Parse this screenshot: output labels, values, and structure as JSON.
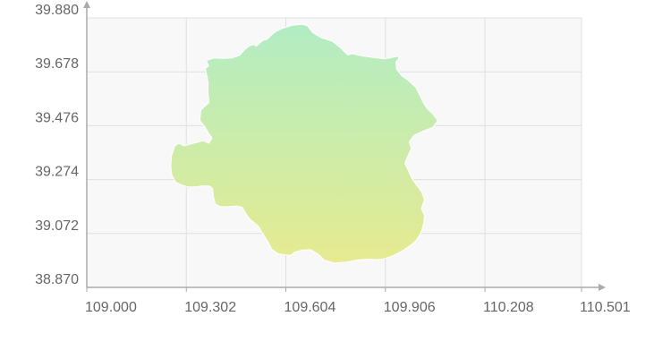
{
  "chart_data": {
    "type": "map",
    "title": "",
    "xlabel": "",
    "ylabel": "",
    "x_ticks": [
      "109.000",
      "109.302",
      "109.604",
      "109.906",
      "110.208",
      "110.501"
    ],
    "y_ticks": [
      "39.880",
      "39.678",
      "39.476",
      "39.274",
      "39.072",
      "38.870"
    ],
    "xlim": [
      109.0,
      110.501
    ],
    "ylim": [
      38.87,
      39.88
    ],
    "grid": true,
    "region_fill_colors": [
      "#b2ecc4",
      "#e6eb90"
    ],
    "region_outline": [
      [
        109.59,
        39.839
      ],
      [
        109.623,
        39.852
      ],
      [
        109.654,
        39.856
      ],
      [
        109.67,
        39.85
      ],
      [
        109.685,
        39.825
      ],
      [
        109.711,
        39.806
      ],
      [
        109.745,
        39.792
      ],
      [
        109.77,
        39.768
      ],
      [
        109.784,
        39.75
      ],
      [
        109.793,
        39.741
      ],
      [
        109.805,
        39.746
      ],
      [
        109.831,
        39.738
      ],
      [
        109.855,
        39.734
      ],
      [
        109.881,
        39.73
      ],
      [
        109.901,
        39.727
      ],
      [
        109.92,
        39.73
      ],
      [
        109.944,
        39.737
      ],
      [
        109.947,
        39.727
      ],
      [
        109.938,
        39.715
      ],
      [
        109.94,
        39.688
      ],
      [
        109.955,
        39.664
      ],
      [
        109.977,
        39.644
      ],
      [
        109.998,
        39.62
      ],
      [
        110.01,
        39.59
      ],
      [
        110.02,
        39.565
      ],
      [
        110.032,
        39.541
      ],
      [
        110.05,
        39.52
      ],
      [
        110.065,
        39.495
      ],
      [
        110.05,
        39.47
      ],
      [
        110.02,
        39.456
      ],
      [
        109.993,
        39.44
      ],
      [
        109.978,
        39.415
      ],
      [
        109.985,
        39.39
      ],
      [
        109.974,
        39.362
      ],
      [
        109.965,
        39.335
      ],
      [
        109.975,
        39.31
      ],
      [
        109.985,
        39.281
      ],
      [
        110.0,
        39.254
      ],
      [
        110.016,
        39.228
      ],
      [
        110.025,
        39.198
      ],
      [
        110.015,
        39.165
      ],
      [
        110.025,
        39.14
      ],
      [
        110.022,
        39.109
      ],
      [
        110.014,
        39.075
      ],
      [
        110.0,
        39.048
      ],
      [
        109.985,
        39.03
      ],
      [
        109.96,
        39.009
      ],
      [
        109.932,
        38.99
      ],
      [
        109.902,
        38.977
      ],
      [
        109.878,
        38.974
      ],
      [
        109.858,
        38.976
      ],
      [
        109.823,
        38.973
      ],
      [
        109.787,
        38.965
      ],
      [
        109.752,
        38.961
      ],
      [
        109.721,
        38.972
      ],
      [
        109.701,
        38.995
      ],
      [
        109.679,
        39.011
      ],
      [
        109.654,
        39.01
      ],
      [
        109.63,
        39.002
      ],
      [
        109.619,
        38.99
      ],
      [
        109.6,
        38.992
      ],
      [
        109.58,
        38.996
      ],
      [
        109.561,
        39.013
      ],
      [
        109.552,
        39.035
      ],
      [
        109.54,
        39.06
      ],
      [
        109.52,
        39.1
      ],
      [
        109.494,
        39.126
      ],
      [
        109.481,
        39.15
      ],
      [
        109.472,
        39.17
      ],
      [
        109.455,
        39.175
      ],
      [
        109.428,
        39.173
      ],
      [
        109.406,
        39.172
      ],
      [
        109.39,
        39.182
      ],
      [
        109.384,
        39.21
      ],
      [
        109.382,
        39.24
      ],
      [
        109.373,
        39.25
      ],
      [
        109.35,
        39.25
      ],
      [
        109.324,
        39.246
      ],
      [
        109.306,
        39.247
      ],
      [
        109.287,
        39.254
      ],
      [
        109.27,
        39.264
      ],
      [
        109.258,
        39.29
      ],
      [
        109.255,
        39.323
      ],
      [
        109.257,
        39.363
      ],
      [
        109.267,
        39.4
      ],
      [
        109.279,
        39.41
      ],
      [
        109.295,
        39.4
      ],
      [
        109.323,
        39.41
      ],
      [
        109.354,
        39.42
      ],
      [
        109.37,
        39.41
      ],
      [
        109.38,
        39.43
      ],
      [
        109.368,
        39.45
      ],
      [
        109.359,
        39.47
      ],
      [
        109.343,
        39.495
      ],
      [
        109.346,
        39.535
      ],
      [
        109.371,
        39.563
      ],
      [
        109.368,
        39.595
      ],
      [
        109.368,
        39.636
      ],
      [
        109.365,
        39.66
      ],
      [
        109.359,
        39.69
      ],
      [
        109.37,
        39.7
      ],
      [
        109.362,
        39.72
      ],
      [
        109.386,
        39.73
      ],
      [
        109.415,
        39.728
      ],
      [
        109.44,
        39.73
      ],
      [
        109.464,
        39.74
      ],
      [
        109.478,
        39.76
      ],
      [
        109.493,
        39.775
      ],
      [
        109.508,
        39.78
      ],
      [
        109.514,
        39.774
      ],
      [
        109.525,
        39.786
      ],
      [
        109.536,
        39.797
      ],
      [
        109.546,
        39.799
      ],
      [
        109.557,
        39.812
      ],
      [
        109.572,
        39.828
      ]
    ]
  }
}
